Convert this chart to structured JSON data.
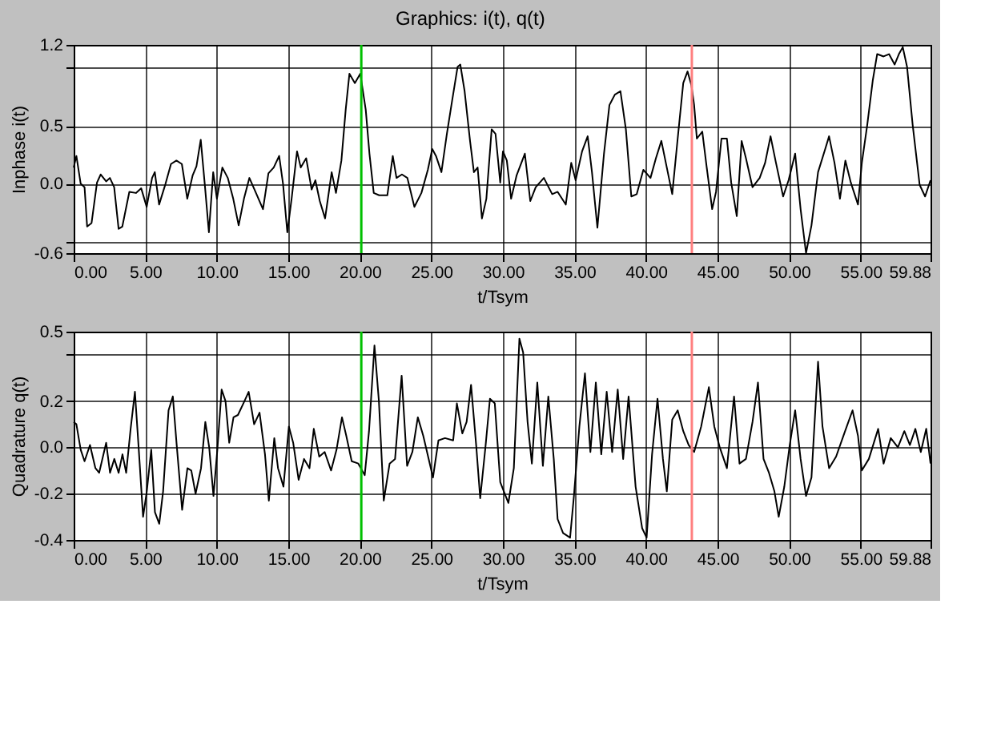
{
  "chart_data": [
    {
      "type": "line",
      "title": "Graphics: i(t), q(t)",
      "xlabel": "t/Tsym",
      "ylabel": "Inphase i(t)",
      "x": [
        0.0,
        0.19,
        0.49,
        0.76,
        0.94,
        1.25,
        1.63,
        1.89,
        2.27,
        2.53,
        2.83,
        3.14,
        3.4,
        3.89,
        4.35,
        4.72,
        5.1,
        5.48,
        5.67,
        5.97,
        6.42,
        6.8,
        7.18,
        7.56,
        7.94,
        8.31,
        8.58,
        8.88,
        9.18,
        9.45,
        9.75,
        10.01,
        10.39,
        10.77,
        11.15,
        11.53,
        11.9,
        12.28,
        12.74,
        13.23,
        13.61,
        13.98,
        14.36,
        14.63,
        14.93,
        15.23,
        15.61,
        15.87,
        16.25,
        16.63,
        16.89,
        17.2,
        17.57,
        18.03,
        18.33,
        18.71,
        19.01,
        19.27,
        19.65,
        20.03,
        20.41,
        20.67,
        20.97,
        21.35,
        21.92,
        22.3,
        22.56,
        22.94,
        23.32,
        23.81,
        24.3,
        24.75,
        25.06,
        25.32,
        25.7,
        26.08,
        26.45,
        26.83,
        27.02,
        27.32,
        27.7,
        27.97,
        28.23,
        28.53,
        28.84,
        29.21,
        29.48,
        29.81,
        30.0,
        30.27,
        30.57,
        30.95,
        31.53,
        31.91,
        32.29,
        32.86,
        33.44,
        33.82,
        34.39,
        34.77,
        35.08,
        35.53,
        35.92,
        36.22,
        36.6,
        37.06,
        37.44,
        37.82,
        38.21,
        38.59,
        38.97,
        39.35,
        39.81,
        40.31,
        40.69,
        41.07,
        41.45,
        41.83,
        42.21,
        42.6,
        42.9,
        43.17,
        43.36,
        43.55,
        43.93,
        44.24,
        44.62,
        44.89,
        45.27,
        45.65,
        45.95,
        46.34,
        46.68,
        46.98,
        47.44,
        47.94,
        48.32,
        48.7,
        49.08,
        49.58,
        49.96,
        50.42,
        50.8,
        51.18,
        51.56,
        52.02,
        52.52,
        52.79,
        53.17,
        53.55,
        53.93,
        54.31,
        54.81,
        55.08,
        55.46,
        55.84,
        56.15,
        56.6,
        56.98,
        57.37,
        57.67,
        57.94,
        58.24,
        58.63,
        59.12,
        59.5,
        59.88
      ],
      "series": [
        {
          "color": "#000000",
          "values": [
            0.14,
            0.24,
            0.0,
            -0.03,
            -0.37,
            -0.34,
            0.01,
            0.08,
            0.02,
            0.05,
            -0.03,
            -0.39,
            -0.37,
            -0.07,
            -0.08,
            -0.04,
            -0.2,
            0.05,
            0.1,
            -0.18,
            0.0,
            0.17,
            0.2,
            0.17,
            -0.13,
            0.07,
            0.15,
            0.38,
            -0.03,
            -0.42,
            0.1,
            -0.13,
            0.14,
            0.05,
            -0.13,
            -0.36,
            -0.13,
            0.05,
            -0.08,
            -0.22,
            0.09,
            0.14,
            0.24,
            0.0,
            -0.42,
            -0.13,
            0.28,
            0.14,
            0.22,
            -0.05,
            0.03,
            -0.15,
            -0.3,
            0.1,
            -0.08,
            0.2,
            0.64,
            0.95,
            0.87,
            0.95,
            0.64,
            0.26,
            -0.08,
            -0.1,
            -0.1,
            0.24,
            0.05,
            0.08,
            0.05,
            -0.2,
            -0.08,
            0.12,
            0.3,
            0.24,
            0.1,
            0.43,
            0.72,
            1.01,
            1.03,
            0.8,
            0.37,
            0.1,
            0.14,
            -0.3,
            -0.13,
            0.47,
            0.43,
            0.01,
            0.28,
            0.2,
            -0.13,
            0.07,
            0.26,
            -0.15,
            -0.03,
            0.05,
            -0.09,
            -0.07,
            -0.18,
            0.18,
            0.03,
            0.28,
            0.41,
            0.1,
            -0.38,
            0.26,
            0.68,
            0.77,
            0.8,
            0.47,
            -0.11,
            -0.09,
            0.12,
            0.05,
            0.22,
            0.37,
            0.14,
            -0.09,
            0.39,
            0.87,
            0.97,
            0.85,
            0.68,
            0.39,
            0.45,
            0.14,
            -0.22,
            -0.07,
            0.39,
            0.39,
            0.01,
            -0.28,
            0.37,
            0.22,
            -0.03,
            0.05,
            0.18,
            0.41,
            0.18,
            -0.11,
            0.03,
            0.26,
            -0.22,
            -0.6,
            -0.36,
            0.1,
            0.3,
            0.41,
            0.18,
            -0.13,
            0.2,
            0.01,
            -0.18,
            0.18,
            0.51,
            0.89,
            1.12,
            1.1,
            1.12,
            1.03,
            1.12,
            1.18,
            1.01,
            0.51,
            -0.01,
            -0.11,
            0.03
          ]
        }
      ],
      "xlim": [
        0,
        59.88
      ],
      "xticks": [
        {
          "value": 0,
          "label": "0.00"
        },
        {
          "value": 5,
          "label": "5.00"
        },
        {
          "value": 10,
          "label": "10.00"
        },
        {
          "value": 15,
          "label": "15.00"
        },
        {
          "value": 20,
          "label": "20.00"
        },
        {
          "value": 25,
          "label": "25.00"
        },
        {
          "value": 30,
          "label": "30.00"
        },
        {
          "value": 35,
          "label": "35.00"
        },
        {
          "value": 40,
          "label": "40.00"
        },
        {
          "value": 45,
          "label": "45.00"
        },
        {
          "value": 50,
          "label": "50.00"
        },
        {
          "value": 55,
          "label": "55.00"
        },
        59.88
      ],
      "ylim": [
        -0.6,
        1.2
      ],
      "yticks": [
        -0.6,
        {
          "value": -0.5,
          "label": null
        },
        {
          "value": 0,
          "label": "0.0"
        },
        0.5,
        {
          "value": 1.0,
          "label": null
        },
        1.2
      ],
      "grid": true,
      "ref_lines": [
        {
          "axis": "x",
          "value": 20.1,
          "color": "#00c000"
        },
        {
          "axis": "x",
          "value": 43.2,
          "color": "#ff8080"
        }
      ]
    },
    {
      "type": "line",
      "xlabel": "t/Tsym",
      "ylabel": "Quadrature q(t)",
      "x": [
        0.0,
        0.19,
        0.49,
        0.76,
        1.14,
        1.52,
        1.78,
        2.27,
        2.54,
        2.84,
        3.14,
        3.41,
        3.67,
        3.98,
        4.28,
        4.55,
        4.85,
        5.11,
        5.42,
        5.68,
        5.98,
        6.25,
        6.63,
        6.93,
        7.2,
        7.58,
        7.95,
        8.22,
        8.52,
        8.9,
        9.2,
        9.47,
        9.77,
        10.04,
        10.34,
        10.61,
        10.87,
        11.17,
        11.48,
        11.86,
        12.23,
        12.61,
        12.99,
        13.37,
        13.64,
        14.02,
        14.28,
        14.66,
        15.04,
        15.34,
        15.72,
        16.1,
        16.48,
        16.78,
        17.16,
        17.54,
        17.99,
        18.37,
        18.75,
        19.05,
        19.43,
        19.89,
        20.34,
        20.64,
        21.02,
        21.33,
        21.67,
        22.08,
        22.46,
        22.92,
        23.3,
        23.67,
        24.05,
        24.43,
        25.11,
        25.49,
        25.95,
        26.52,
        26.78,
        27.16,
        27.46,
        27.77,
        28.14,
        28.41,
        28.79,
        29.09,
        29.43,
        29.81,
        30.38,
        30.76,
        31.15,
        31.41,
        31.72,
        32.02,
        32.4,
        32.79,
        33.17,
        33.55,
        33.82,
        34.2,
        34.69,
        34.96,
        35.34,
        35.73,
        36.11,
        36.49,
        36.87,
        37.25,
        37.63,
        38.02,
        38.4,
        38.78,
        39.27,
        39.73,
        40.04,
        40.42,
        40.8,
        41.18,
        41.45,
        41.83,
        42.21,
        42.6,
        42.98,
        43.36,
        43.85,
        44.39,
        44.77,
        45.15,
        45.65,
        46.15,
        46.53,
        46.98,
        47.44,
        47.82,
        48.21,
        48.59,
        48.97,
        49.27,
        49.66,
        50.04,
        50.42,
        50.8,
        51.18,
        51.56,
        52.02,
        52.33,
        52.79,
        53.28,
        53.85,
        54.43,
        54.81,
        55.08,
        55.57,
        56.22,
        56.6,
        57.1,
        57.6,
        58.05,
        58.44,
        58.82,
        59.2,
        59.58,
        59.88
      ],
      "series": [
        {
          "color": "#000000",
          "values": [
            0.11,
            0.1,
            -0.01,
            -0.06,
            0.01,
            -0.09,
            -0.11,
            0.02,
            -0.11,
            -0.05,
            -0.11,
            -0.03,
            -0.11,
            0.08,
            0.24,
            -0.01,
            -0.3,
            -0.19,
            -0.01,
            -0.28,
            -0.33,
            -0.19,
            0.16,
            0.22,
            0.01,
            -0.27,
            -0.09,
            -0.1,
            -0.2,
            -0.09,
            0.11,
            0.0,
            -0.21,
            -0.01,
            0.25,
            0.2,
            0.02,
            0.13,
            0.14,
            0.19,
            0.24,
            0.1,
            0.15,
            -0.03,
            -0.23,
            0.04,
            -0.09,
            -0.17,
            0.09,
            0.02,
            -0.14,
            -0.05,
            -0.09,
            0.08,
            -0.04,
            -0.02,
            -0.1,
            -0.01,
            0.13,
            0.05,
            -0.06,
            -0.07,
            -0.12,
            0.07,
            0.44,
            0.2,
            -0.23,
            -0.07,
            -0.05,
            0.31,
            -0.08,
            -0.02,
            0.13,
            0.05,
            -0.13,
            0.03,
            0.04,
            0.03,
            0.19,
            0.06,
            0.11,
            0.27,
            0.0,
            -0.22,
            0.01,
            0.21,
            0.19,
            -0.15,
            -0.24,
            -0.09,
            0.47,
            0.41,
            0.11,
            -0.07,
            0.28,
            -0.08,
            0.22,
            -0.05,
            -0.31,
            -0.37,
            -0.39,
            -0.21,
            0.09,
            0.32,
            -0.02,
            0.28,
            -0.03,
            0.24,
            -0.02,
            0.25,
            -0.05,
            0.22,
            -0.17,
            -0.35,
            -0.39,
            -0.03,
            0.21,
            -0.05,
            -0.19,
            0.12,
            0.16,
            0.07,
            0.01,
            -0.02,
            0.09,
            0.26,
            0.09,
            0.0,
            -0.09,
            0.22,
            -0.07,
            -0.05,
            0.11,
            0.28,
            -0.05,
            -0.11,
            -0.19,
            -0.3,
            -0.17,
            0.01,
            0.16,
            -0.05,
            -0.21,
            -0.13,
            0.37,
            0.09,
            -0.09,
            -0.04,
            0.06,
            0.16,
            0.05,
            -0.1,
            -0.05,
            0.08,
            -0.07,
            0.04,
            0.0,
            0.07,
            0.01,
            0.08,
            -0.02,
            0.08,
            -0.07
          ]
        }
      ],
      "xlim": [
        0,
        59.88
      ],
      "xticks": [
        {
          "value": 0,
          "label": "0.00"
        },
        {
          "value": 5,
          "label": "5.00"
        },
        {
          "value": 10,
          "label": "10.00"
        },
        {
          "value": 15,
          "label": "15.00"
        },
        {
          "value": 20,
          "label": "20.00"
        },
        {
          "value": 25,
          "label": "25.00"
        },
        {
          "value": 30,
          "label": "30.00"
        },
        {
          "value": 35,
          "label": "35.00"
        },
        {
          "value": 40,
          "label": "40.00"
        },
        {
          "value": 45,
          "label": "45.00"
        },
        {
          "value": 50,
          "label": "50.00"
        },
        {
          "value": 55,
          "label": "55.00"
        },
        59.88
      ],
      "ylim": [
        -0.4,
        0.5
      ],
      "yticks": [
        -0.4,
        -0.2,
        {
          "value": 0,
          "label": "0.0"
        },
        0.2,
        {
          "value": 0.4,
          "label": null
        },
        0.5
      ],
      "grid": true,
      "ref_lines": [
        {
          "axis": "x",
          "value": 20.1,
          "color": "#00c000"
        },
        {
          "axis": "x",
          "value": 43.2,
          "color": "#ff8080"
        }
      ]
    }
  ]
}
